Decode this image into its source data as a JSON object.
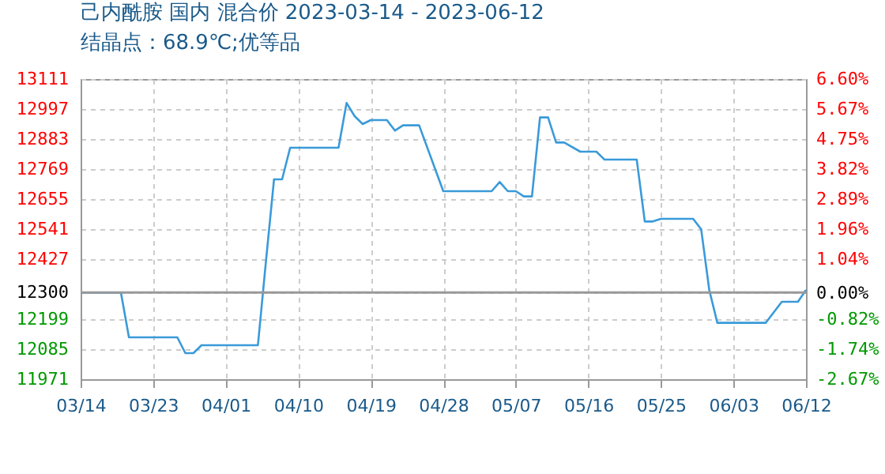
{
  "chart_data": {
    "type": "line",
    "title": "己内酰胺 国内 混合价 2023-03-14 - 2023-06-12",
    "subtitle": "结晶点：68.9℃;优等品",
    "x": [
      "2023-03-14",
      "2023-03-19",
      "2023-03-20",
      "2023-03-26",
      "2023-03-27",
      "2023-03-28",
      "2023-03-29",
      "2023-04-05",
      "2023-04-06",
      "2023-04-07",
      "2023-04-08",
      "2023-04-09",
      "2023-04-15",
      "2023-04-16",
      "2023-04-17",
      "2023-04-18",
      "2023-04-19",
      "2023-04-21",
      "2023-04-22",
      "2023-04-23",
      "2023-04-25",
      "2023-04-28",
      "2023-05-04",
      "2023-05-05",
      "2023-05-06",
      "2023-05-07",
      "2023-05-08",
      "2023-05-09",
      "2023-05-10",
      "2023-05-11",
      "2023-05-12",
      "2023-05-13",
      "2023-05-15",
      "2023-05-17",
      "2023-05-18",
      "2023-05-22",
      "2023-05-23",
      "2023-05-24",
      "2023-05-25",
      "2023-05-29",
      "2023-05-30",
      "2023-05-31",
      "2023-06-01",
      "2023-06-07",
      "2023-06-09",
      "2023-06-11",
      "2023-06-12"
    ],
    "series": [
      {
        "color": "#3a9ad9",
        "values": [
          12300,
          12300,
          12130,
          12130,
          12070,
          12070,
          12100,
          12100,
          12420,
          12730,
          12730,
          12850,
          12850,
          13020,
          12970,
          12940,
          12955,
          12955,
          12915,
          12935,
          12935,
          12685,
          12685,
          12720,
          12685,
          12685,
          12665,
          12665,
          12965,
          12965,
          12870,
          12870,
          12835,
          12835,
          12805,
          12805,
          12570,
          12570,
          12580,
          12580,
          12540,
          12310,
          12185,
          12185,
          12265,
          12265,
          12310
        ]
      }
    ],
    "xlim": [
      "2023-03-14",
      "2023-06-12"
    ],
    "xticks": [
      {
        "value": "2023-03-14",
        "label": "03/14"
      },
      {
        "value": "2023-03-23",
        "label": "03/23"
      },
      {
        "value": "2023-04-01",
        "label": "04/01"
      },
      {
        "value": "2023-04-10",
        "label": "04/10"
      },
      {
        "value": "2023-04-19",
        "label": "04/19"
      },
      {
        "value": "2023-04-28",
        "label": "04/28"
      },
      {
        "value": "2023-05-07",
        "label": "05/07"
      },
      {
        "value": "2023-05-16",
        "label": "05/16"
      },
      {
        "value": "2023-05-25",
        "label": "05/25"
      },
      {
        "value": "2023-06-03",
        "label": "06/03"
      },
      {
        "value": "2023-06-12",
        "label": "06/12"
      }
    ],
    "ylim": [
      11971,
      13111
    ],
    "yticks": [
      11971,
      12085,
      12199,
      12300,
      12427,
      12541,
      12655,
      12769,
      12883,
      12997,
      13111
    ],
    "y2lim": [
      -2.67,
      6.6
    ],
    "y2ticks": [
      {
        "value": -2.67,
        "label": "-2.67%"
      },
      {
        "value": -1.74,
        "label": "-1.74%"
      },
      {
        "value": -0.82,
        "label": "-0.82%"
      },
      {
        "value": 0,
        "label": "0.00%"
      },
      {
        "value": 1.04,
        "label": "1.04%"
      },
      {
        "value": 1.96,
        "label": "1.96%"
      },
      {
        "value": 2.89,
        "label": "2.89%"
      },
      {
        "value": 3.82,
        "label": "3.82%"
      },
      {
        "value": 4.75,
        "label": "4.75%"
      },
      {
        "value": 5.67,
        "label": "5.67%"
      },
      {
        "value": 6.6,
        "label": "6.60%"
      }
    ],
    "grid": true,
    "ref_lines": [
      {
        "axis": "y",
        "value": 12300,
        "color": "#999999"
      }
    ]
  }
}
